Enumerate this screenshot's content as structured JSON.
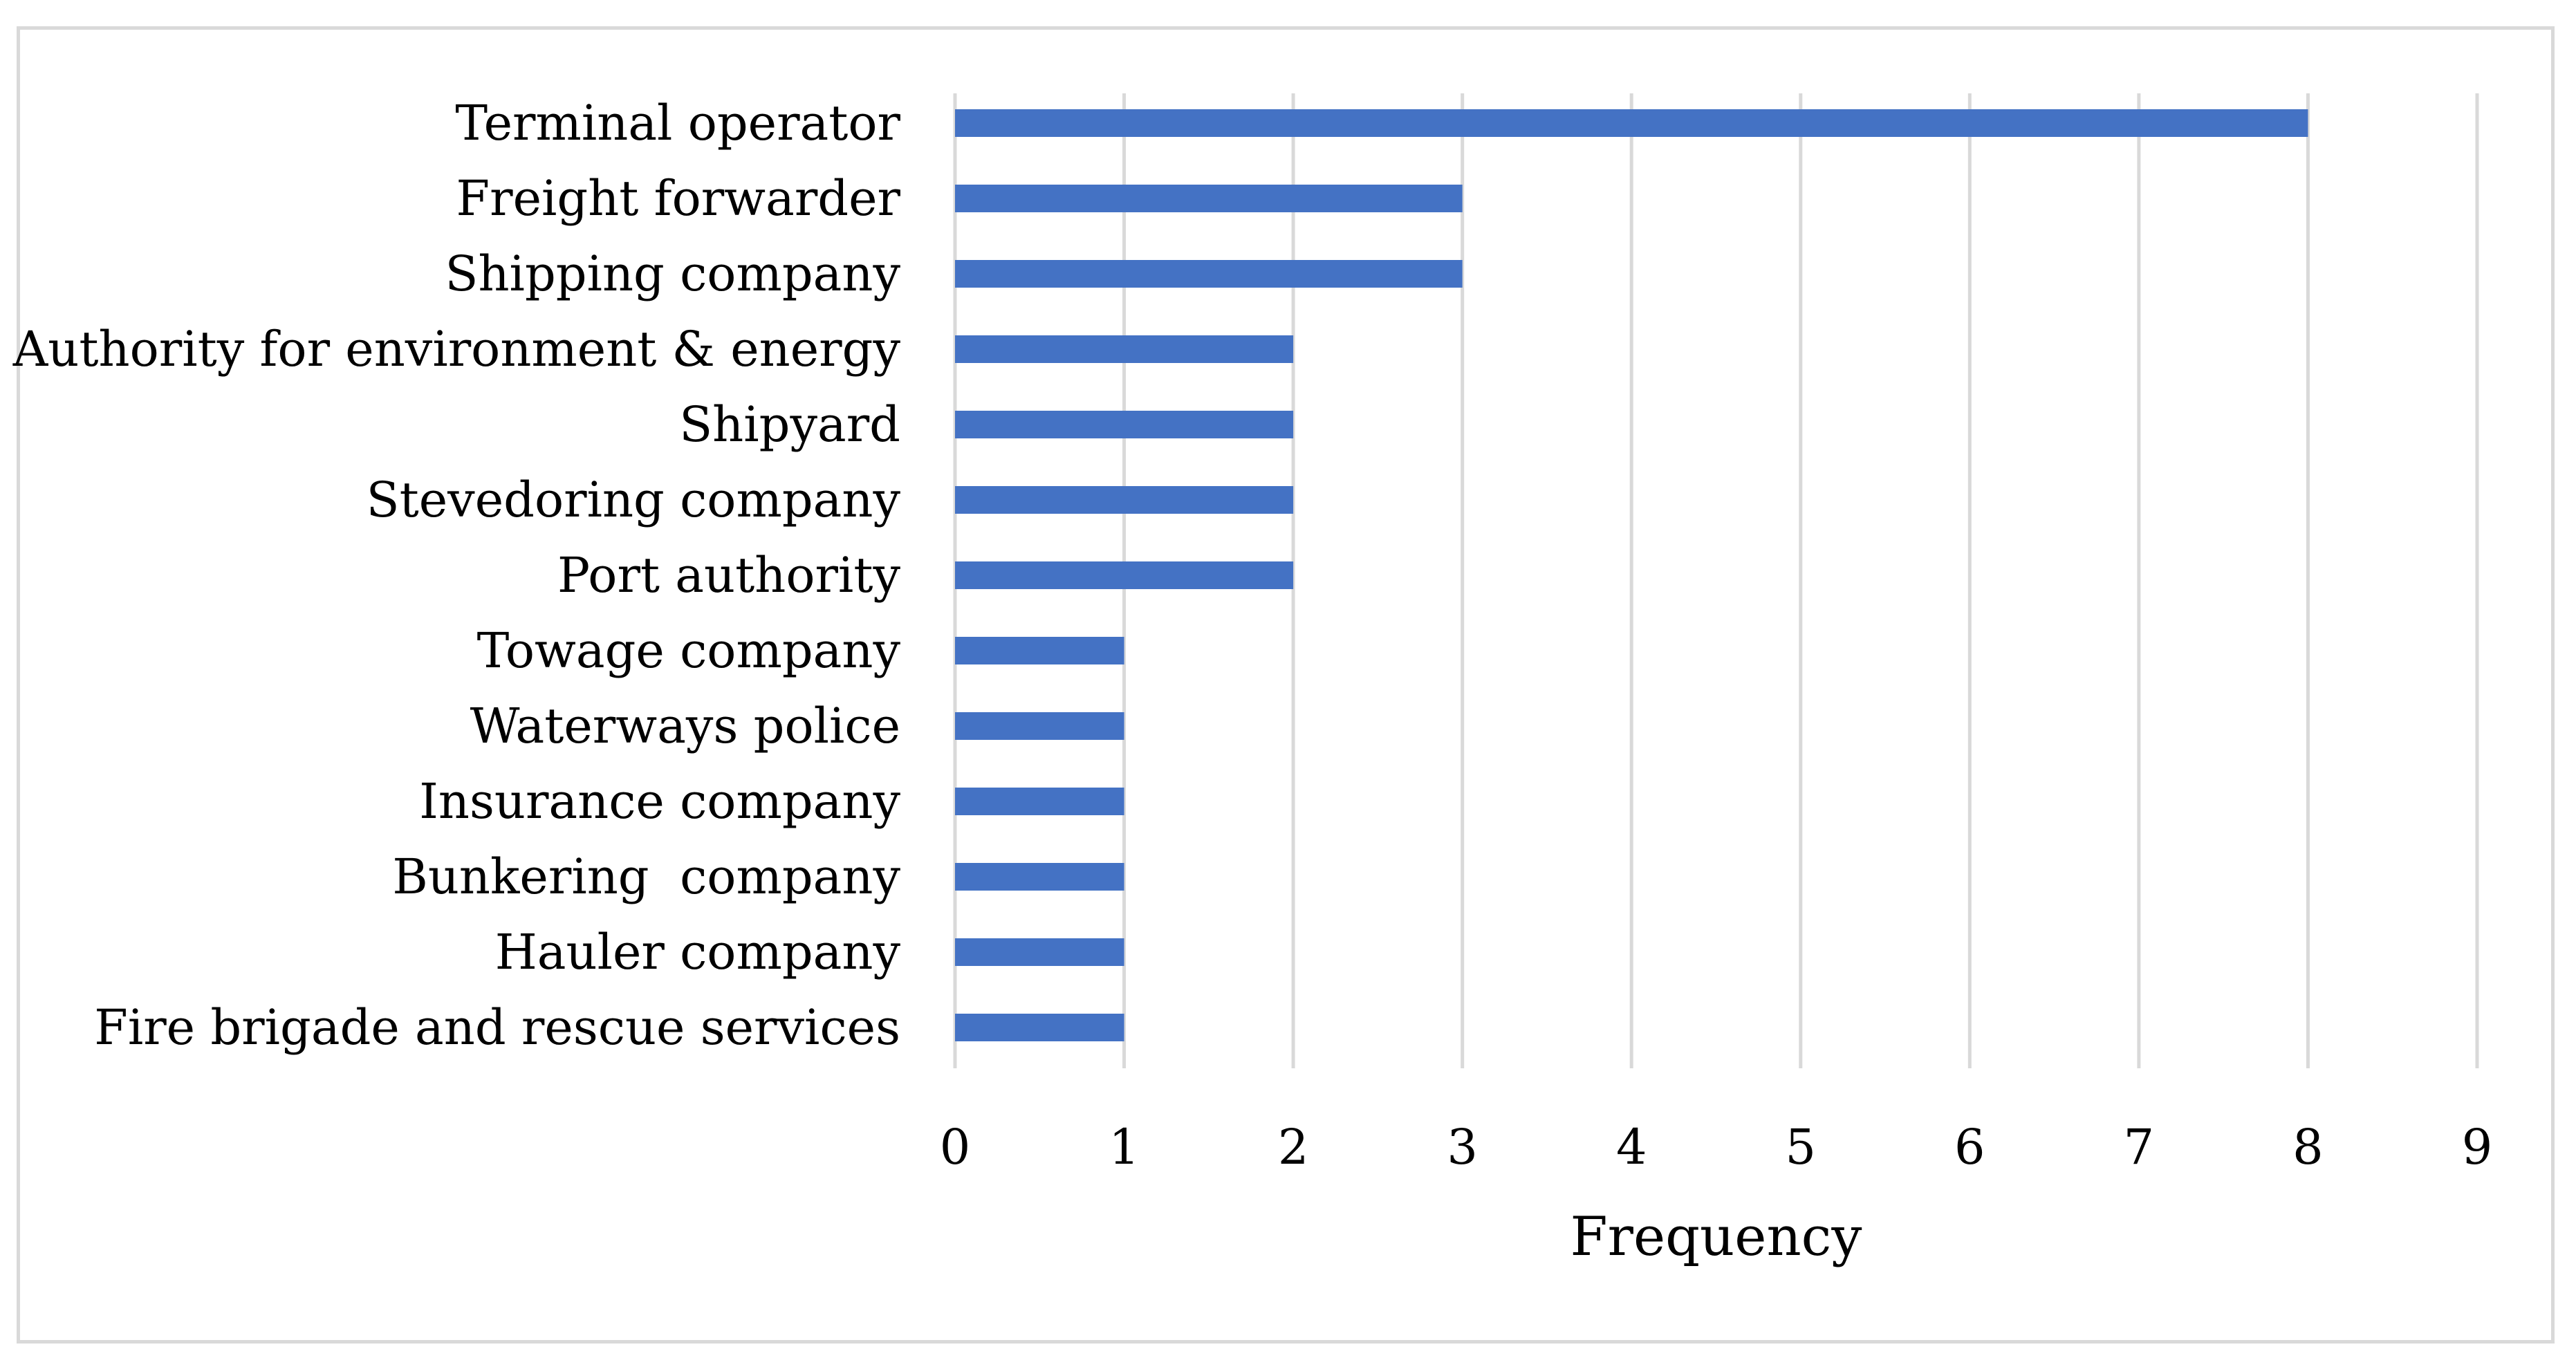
{
  "chart_data": {
    "type": "bar",
    "orientation": "horizontal",
    "categories": [
      "Terminal operator",
      "Freight forwarder",
      "Shipping company",
      "Authority for environment & energy",
      "Shipyard",
      "Stevedoring company",
      "Port authority",
      "Towage company",
      "Waterways police",
      "Insurance company",
      "Bunkering  company",
      "Hauler company",
      "Fire brigade and rescue services"
    ],
    "values": [
      8,
      3,
      3,
      2,
      2,
      2,
      2,
      1,
      1,
      1,
      1,
      1,
      1
    ],
    "xlabel": "Frequency",
    "ylabel": "",
    "title": "",
    "xlim": [
      0,
      9
    ],
    "xticks": [
      "0",
      "1",
      "2",
      "3",
      "4",
      "5",
      "6",
      "7",
      "8",
      "9"
    ],
    "grid": "vertical",
    "legend": "none",
    "colors": {
      "bar": "#4472c4",
      "grid": "#d9d9d9",
      "frame": "#d9d9d9"
    }
  }
}
